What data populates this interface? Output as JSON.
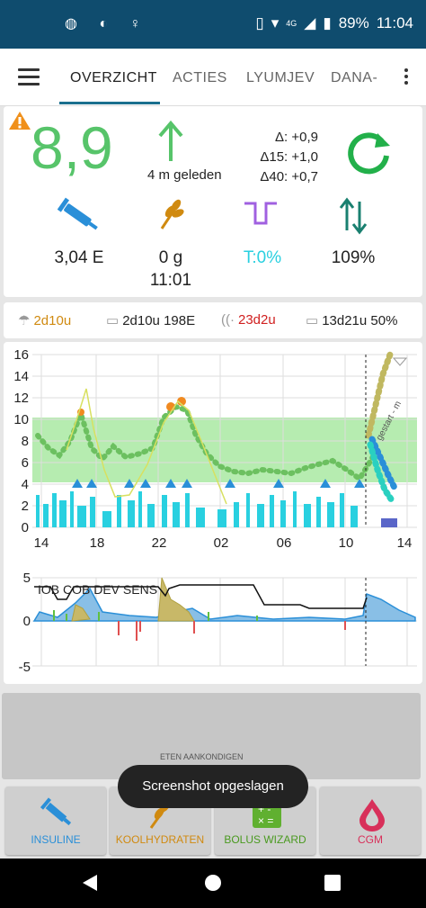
{
  "status_bar": {
    "time": "11:04",
    "battery": "89%",
    "network": "4G"
  },
  "tabs": [
    "OVERZICHT",
    "ACTIES",
    "LYUMJEV",
    "DANA-"
  ],
  "overview": {
    "bg_value": "8,9",
    "time_ago": "4 m geleden",
    "deltas": [
      "Δ: +0,9",
      "Δ15: +1,0",
      "Δ40: +0,7"
    ],
    "iob": "3,04 E",
    "carbs": "0 g",
    "carbs_time": "11:01",
    "temp_basal": "T:0%",
    "sensitivity": "109%"
  },
  "status_row": {
    "cannula_age": "2d10u",
    "reservoir": "2d10u 198E",
    "sensor_age": "23d2u",
    "battery": "13d21u 50%"
  },
  "colors": {
    "bg_green": "#57c46a",
    "temp_basal": "#29d0e0",
    "carbs": "#d08a10",
    "sensor_warning": "#d02020",
    "insulin": "#2a8fd8"
  },
  "graph": {
    "y_ticks": [
      "16",
      "14",
      "12",
      "10",
      "8",
      "6",
      "4",
      "2",
      "0"
    ],
    "x_ticks": [
      "14",
      "18",
      "22",
      "02",
      "06",
      "10",
      "14"
    ],
    "rotated_label": "gestart - m"
  },
  "graph2": {
    "y_ticks": [
      "5",
      "0",
      "-5"
    ],
    "legend": "IOB COB DEV SENS"
  },
  "hidden_label": "ETEN AANKONDIGEN",
  "toast": "Screenshot opgeslagen",
  "buttons": {
    "insulin": "INSULINE",
    "carbs": "KOOLHYDRATEN",
    "bolus": "BOLUS WIZARD",
    "cgm": "CGM"
  }
}
